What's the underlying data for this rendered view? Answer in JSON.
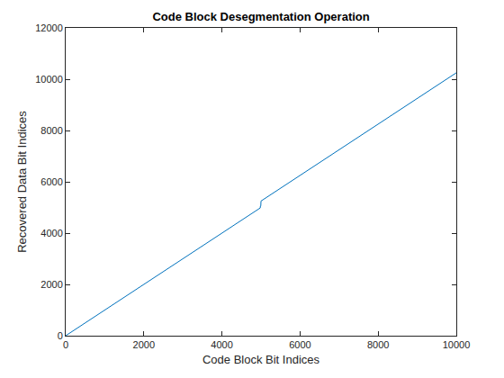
{
  "chart_data": {
    "type": "line",
    "title": "Code Block Desegmentation Operation",
    "x_label": "Code Block Bit Indices",
    "y_label": "Recovered Data Bit Indices",
    "series": [
      {
        "name": "Recovered Data Bit Indices",
        "color": "#0072bd",
        "x": [
          0,
          4980,
          4985,
          4995,
          5000,
          10000
        ],
        "values": [
          0,
          4980,
          5060,
          5060,
          5250,
          10250
        ]
      }
    ],
    "xlim": [
      0,
      10000
    ],
    "xticks": [
      0,
      2000,
      4000,
      6000,
      8000,
      10000
    ],
    "ylim": [
      0,
      12000
    ],
    "yticks": [
      0,
      2000,
      4000,
      6000,
      8000,
      10000,
      12000
    ],
    "grid": false
  }
}
